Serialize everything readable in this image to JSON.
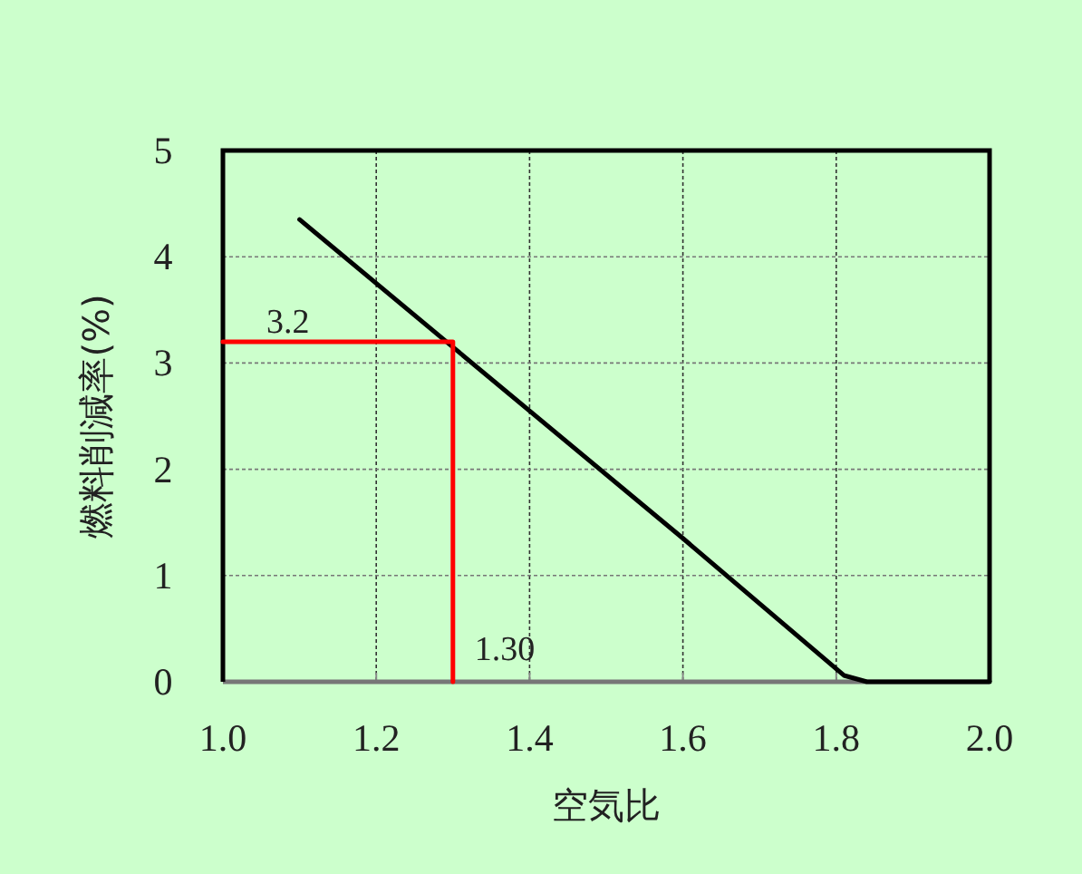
{
  "chart_data": {
    "type": "line",
    "xlabel": "空気比",
    "ylabel": "燃料削減率(%)",
    "xlim": [
      1.0,
      2.0
    ],
    "xticks": [
      {
        "value": 1.0,
        "label": "1.0"
      },
      {
        "value": 1.2,
        "label": "1.2"
      },
      {
        "value": 1.4,
        "label": "1.4"
      },
      {
        "value": 1.6,
        "label": "1.6"
      },
      {
        "value": 1.8,
        "label": "1.8"
      },
      {
        "value": 2.0,
        "label": "2.0"
      }
    ],
    "ylim": [
      0,
      5
    ],
    "yticks": [
      0,
      1,
      2,
      3,
      4,
      5
    ],
    "grid": true,
    "marker": "none",
    "line_style": "solid",
    "series": [
      {
        "color": "#000000",
        "x": [
          1.1,
          1.3,
          1.6,
          1.81,
          1.84,
          2.0
        ],
        "values": [
          4.35,
          3.15,
          1.35,
          0.06,
          0,
          0
        ]
      },
      {
        "color": "#ff0000",
        "x": [
          1.0,
          1.3,
          1.3
        ],
        "values": [
          3.2,
          3.2,
          0
        ]
      }
    ],
    "annotations": [
      {
        "text": "3.2",
        "x": 1.0,
        "y": 3.2
      },
      {
        "text": "1.30",
        "x": 1.3,
        "y": 0
      }
    ]
  }
}
